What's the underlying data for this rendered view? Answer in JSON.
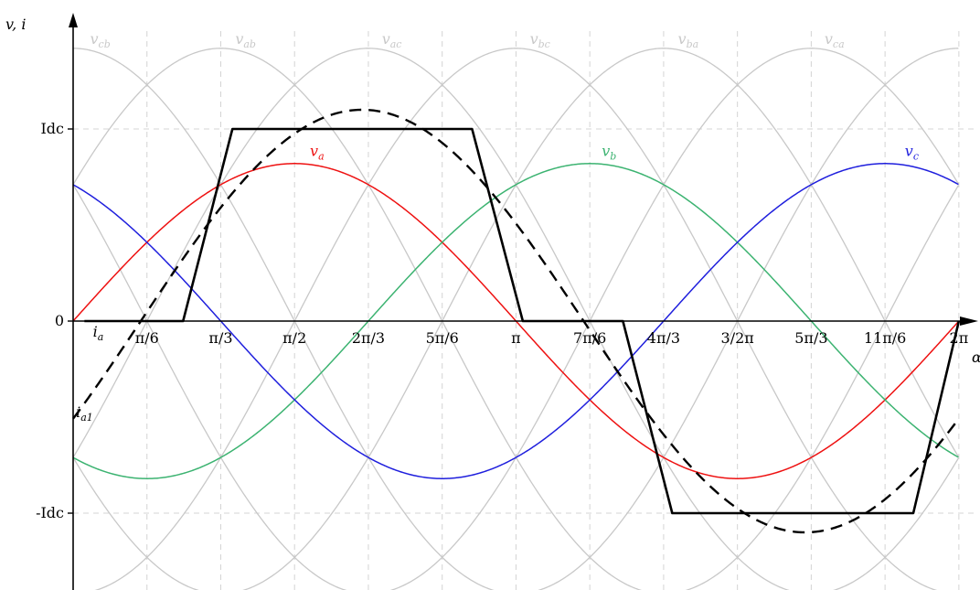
{
  "chart_data": {
    "type": "line",
    "title": "",
    "xlabel": "α",
    "ylabel": "v, i",
    "xlim": [
      0,
      6.2832
    ],
    "ylim": [
      -1.3,
      1.4
    ],
    "grid": true,
    "x_ticks": [
      {
        "label": "π/6",
        "value": 0.5236
      },
      {
        "label": "π/3",
        "value": 1.0472
      },
      {
        "label": "π/2",
        "value": 1.5708
      },
      {
        "label": "2π/3",
        "value": 2.0944
      },
      {
        "label": "5π/6",
        "value": 2.618
      },
      {
        "label": "π",
        "value": 3.1416
      },
      {
        "label": "7π/6",
        "value": 3.6652
      },
      {
        "label": "4π/3",
        "value": 4.1888
      },
      {
        "label": "3/2π",
        "value": 4.7124
      },
      {
        "label": "5π/3",
        "value": 5.236
      },
      {
        "label": "11π/6",
        "value": 5.7596
      },
      {
        "label": "2π",
        "value": 6.2832
      }
    ],
    "y_ticks": [
      {
        "label": "Idc",
        "value": 1
      },
      {
        "label": "0",
        "value": 0
      },
      {
        "label": "-Idc",
        "value": -1
      }
    ],
    "phase_voltage_amplitude": 0.82,
    "phase_voltages": [
      {
        "name": "v",
        "sub": "a",
        "color": "#ee1111",
        "phase_deg": 0,
        "label_at": {
          "x": 1.68,
          "y": 0.86
        }
      },
      {
        "name": "v",
        "sub": "b",
        "color": "#3cb371",
        "phase_deg": -120,
        "label_at": {
          "x": 3.75,
          "y": 0.86
        }
      },
      {
        "name": "v",
        "sub": "c",
        "color": "#1f1fdd",
        "phase_deg": 120,
        "label_at": {
          "x": 5.9,
          "y": 0.86
        }
      }
    ],
    "line_voltage_amplitude": 1.42,
    "line_voltage_color": "#c8c8c8",
    "line_voltages": [
      {
        "name": "v",
        "sub": "cb",
        "peak_x": 0.0,
        "label_at": {
          "x": 0.12
        }
      },
      {
        "name": "v",
        "sub": "ab",
        "peak_x": 1.0472,
        "label_at": {
          "x": 1.15
        }
      },
      {
        "name": "v",
        "sub": "ac",
        "peak_x": 2.0944,
        "label_at": {
          "x": 2.19
        }
      },
      {
        "name": "v",
        "sub": "bc",
        "peak_x": 3.1416,
        "label_at": {
          "x": 3.24
        }
      },
      {
        "name": "v",
        "sub": "ba",
        "peak_x": 4.1888,
        "label_at": {
          "x": 4.29
        }
      },
      {
        "name": "v",
        "sub": "ca",
        "peak_x": 5.236,
        "label_at": {
          "x": 5.33
        }
      }
    ],
    "series": [
      {
        "name": "i",
        "sub": "a",
        "style": "solid",
        "color": "#000000",
        "x": [
          0.08,
          0.78,
          1.13,
          2.83,
          3.19,
          3.9,
          4.25,
          5.96,
          6.2832
        ],
        "y": [
          0,
          0,
          1,
          1,
          0,
          0,
          -1,
          -1,
          0
        ],
        "label_at": {
          "x": 0.14,
          "y": -0.08
        }
      },
      {
        "name": "i",
        "sub": "a1",
        "style": "dashed",
        "color": "#000000",
        "amplitude": 1.1,
        "phase_shift": 0.48,
        "label_at": {
          "x": 0.02,
          "y": -0.5
        }
      }
    ]
  }
}
